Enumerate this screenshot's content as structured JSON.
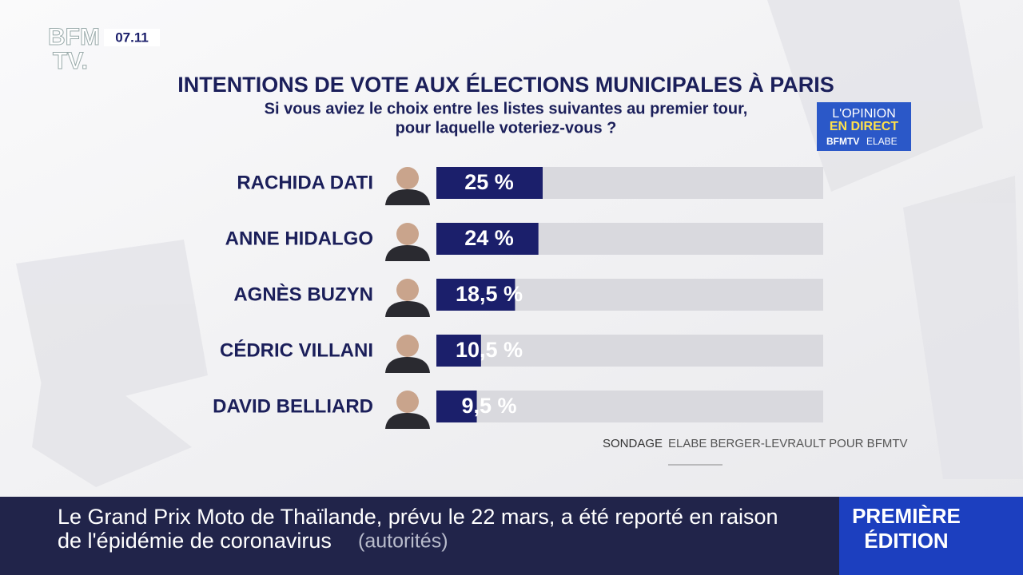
{
  "header": {
    "logo": [
      "BFM",
      "TV."
    ],
    "time": "07.11"
  },
  "chart_data": {
    "type": "bar",
    "orientation": "horizontal",
    "title": "INTENTIONS DE VOTE AUX ÉLECTIONS MUNICIPALES À PARIS",
    "subtitle": [
      "Si vous aviez le choix entre les listes suivantes au premier tour,",
      "pour laquelle voteriez-vous ?"
    ],
    "categories": [
      "RACHIDA  DATI",
      "ANNE HIDALGO",
      "AGNÈS BUZYN",
      "CÉDRIC  VILLANI",
      "DAVID BELLIARD"
    ],
    "values": [
      25,
      24,
      18.5,
      10.5,
      9.5
    ],
    "value_labels": [
      "25 %",
      "24 %",
      "18,5 %",
      "10,5 %",
      "9,5 %"
    ],
    "color": "#1b1f6b",
    "track_color": "#d9d9de",
    "source_label": "SONDAGE",
    "source": "ELABE BERGER-LEVRAULT POUR BFMTV"
  },
  "badge": {
    "lines": [
      "L'OPINION",
      "EN DIRECT"
    ],
    "brand": "BFMTV",
    "partner": "ELABE"
  },
  "ticker": {
    "lines": [
      "Le Grand Prix Moto de Thaïlande, prévu le 22 mars, a été reporté en raison",
      "de l'épidémie de coronavirus"
    ],
    "note": "(autorités)",
    "program": [
      "PREMIÈRE",
      "ÉDITION"
    ]
  }
}
